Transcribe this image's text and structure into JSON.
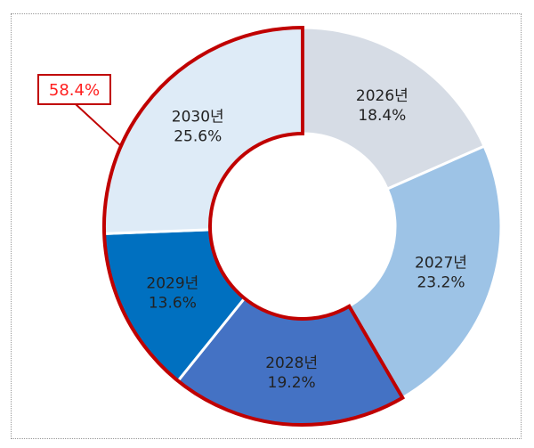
{
  "chart_data": {
    "type": "pie",
    "style": "donut",
    "categories": [
      "2026년",
      "2027년",
      "2028년",
      "2029년",
      "2030년"
    ],
    "values": [
      18.4,
      23.2,
      19.2,
      13.6,
      25.6
    ],
    "data_labels": [
      "18.4%",
      "23.2%",
      "19.2%",
      "13.6%",
      "25.6%"
    ],
    "colors": [
      "#D6DCE5",
      "#9DC3E6",
      "#4472C4",
      "#0070C0",
      "#DEEBF7"
    ],
    "highlight": {
      "categories": [
        "2028년",
        "2029년",
        "2030년"
      ],
      "outline_color": "#C00000",
      "total_label": "58.4%"
    },
    "start": "top",
    "direction": "clockwise"
  }
}
